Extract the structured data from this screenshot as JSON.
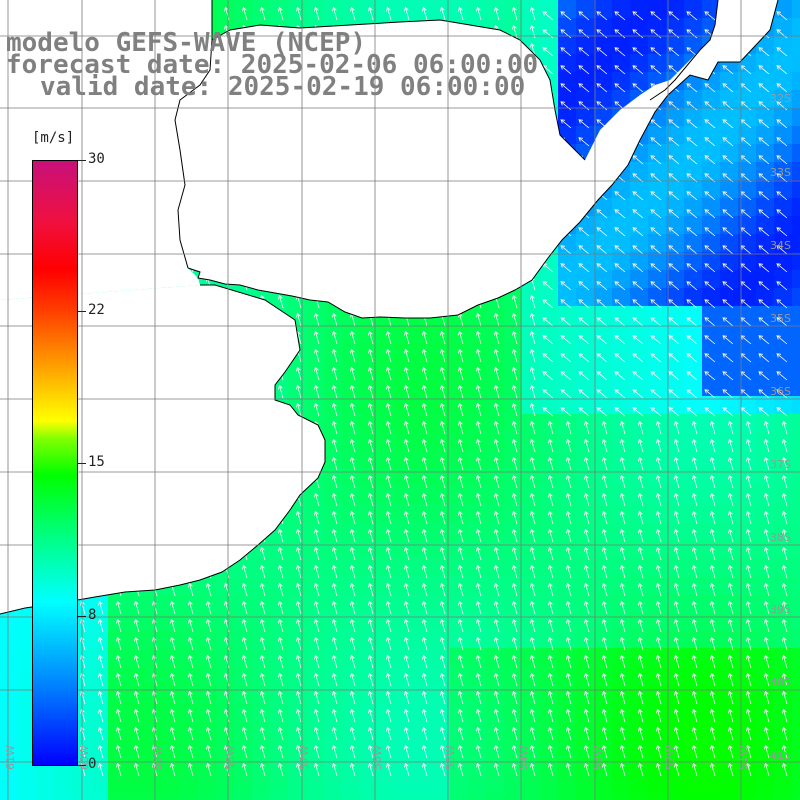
{
  "title": {
    "model": "modelo GEFS-WAVE (NCEP)",
    "forecast": "forecast date: 2025-02-06 06:00:00",
    "valid": "valid date: 2025-02-19 06:00:00"
  },
  "colorbar": {
    "unit": "[m/s]",
    "ticks": [
      "30",
      "22",
      "15",
      "8",
      "0"
    ],
    "min": 0,
    "max": 30
  },
  "grid": {
    "lat_labels": [
      "32S",
      "33S",
      "34S",
      "35S",
      "36S",
      "37S",
      "38S",
      "39S",
      "40S",
      "41S"
    ],
    "lon_labels": [
      "61W",
      "60W",
      "59W",
      "58W",
      "57W",
      "56W",
      "55W",
      "54W",
      "53W",
      "52W",
      "51W"
    ]
  },
  "colors": {
    "land": "#ffffff",
    "coast": "#000000",
    "grid": "#7a7a7a",
    "arrow": "#ffffff",
    "label": "#808080"
  }
}
